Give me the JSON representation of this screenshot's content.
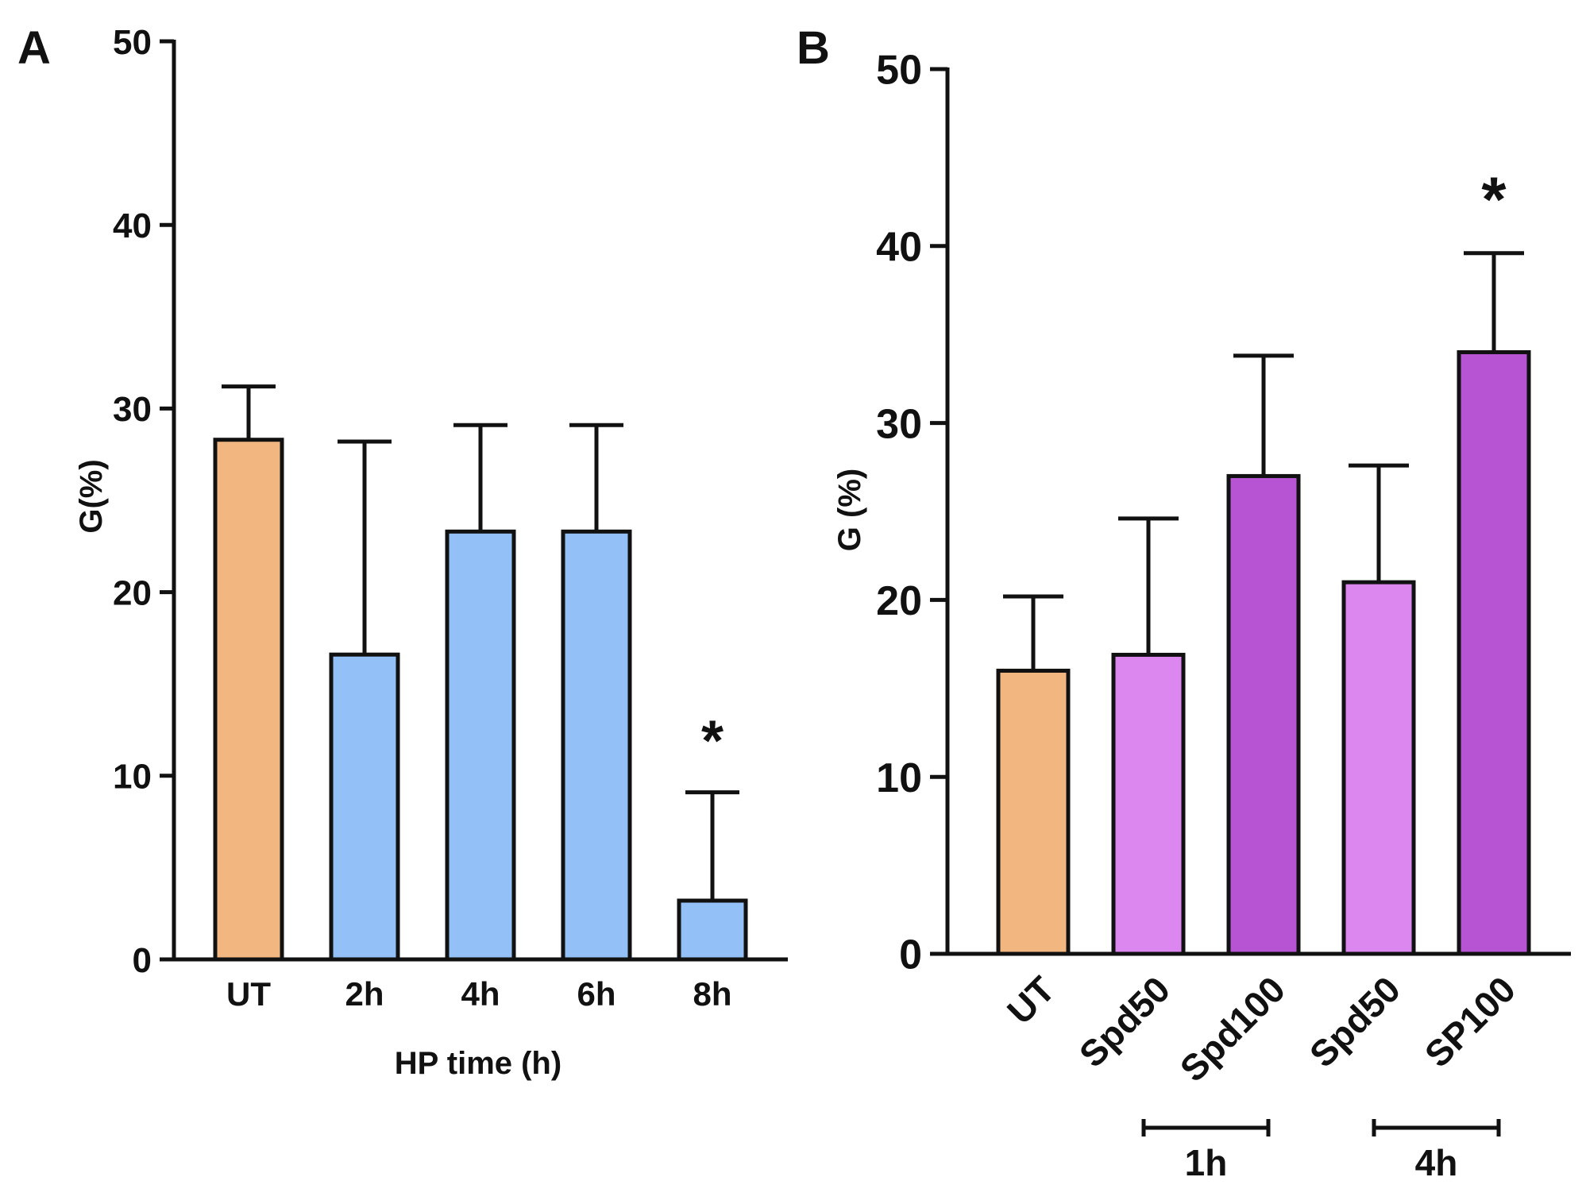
{
  "chart_data": [
    {
      "panel": "A",
      "type": "bar",
      "title": "",
      "xlabel": "HP time (h)",
      "ylabel": "G(%)",
      "ylim": [
        0,
        50
      ],
      "yticks": [
        "0",
        "10",
        "20",
        "30",
        "40",
        "50"
      ],
      "categories": [
        "UT",
        "2h",
        "4h",
        "6h",
        "8h"
      ],
      "values": [
        28.3,
        16.6,
        23.3,
        23.3,
        3.2
      ],
      "errors": [
        2.9,
        11.6,
        5.8,
        5.8,
        5.9
      ],
      "significance": [
        "",
        "",
        "",
        "",
        "*"
      ],
      "colors": [
        "#F2B680",
        "#93C1F7",
        "#93C1F7",
        "#93C1F7",
        "#93C1F7"
      ]
    },
    {
      "panel": "B",
      "type": "bar",
      "title": "",
      "xlabel": "",
      "ylabel": "G (%)",
      "ylim": [
        0,
        50
      ],
      "yticks": [
        "0",
        "10",
        "20",
        "30",
        "40",
        "50"
      ],
      "categories": [
        "UT",
        "Spd50",
        "Spd100",
        "Spd50",
        "SP100"
      ],
      "values": [
        16.0,
        16.9,
        27.0,
        21.0,
        34.0
      ],
      "errors": [
        4.2,
        7.7,
        6.8,
        6.6,
        5.6
      ],
      "significance": [
        "",
        "",
        "",
        "",
        "*"
      ],
      "colors": [
        "#F2B680",
        "#DC86F0",
        "#B754D4",
        "#DC86F0",
        "#B754D4"
      ],
      "groups": [
        {
          "label": "1h",
          "from": 1,
          "to": 2
        },
        {
          "label": "4h",
          "from": 3,
          "to": 4
        }
      ]
    }
  ]
}
